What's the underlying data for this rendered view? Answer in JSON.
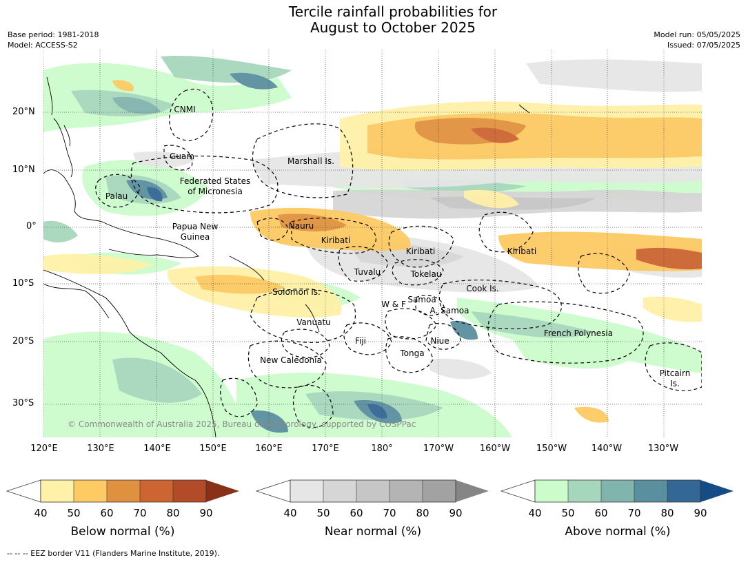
{
  "title_line1": "Tercile rainfall probabilities for",
  "title_line2": "August to October 2025",
  "left_info": {
    "base_period": "Base period: 1981-2018",
    "model": "Model: ACCESS-S2"
  },
  "right_info": {
    "model_run": "Model run: 05/05/2025",
    "issued": "Issued: 07/05/2025"
  },
  "lat_labels": [
    "20°N",
    "10°N",
    "0°",
    "10°S",
    "20°S",
    "30°S"
  ],
  "lon_labels": [
    "120°E",
    "130°E",
    "140°E",
    "150°E",
    "160°E",
    "170°E",
    "180°",
    "170°W",
    "160°W",
    "150°W",
    "140°W",
    "130°W"
  ],
  "regions": [
    {
      "name": "CNMI"
    },
    {
      "name": "Guam"
    },
    {
      "name": "Marshall Is."
    },
    {
      "name": "Federated States"
    },
    {
      "name": "of Micronesia"
    },
    {
      "name": "Palau"
    },
    {
      "name": "Nauru"
    },
    {
      "name": "Papua New"
    },
    {
      "name": "Guinea"
    },
    {
      "name": "Kiribati"
    },
    {
      "name": "Kiribati"
    },
    {
      "name": "Kiribati"
    },
    {
      "name": "Tuvalu"
    },
    {
      "name": "Tokelau"
    },
    {
      "name": "Solomon Is."
    },
    {
      "name": "Cook Is."
    },
    {
      "name": "Samoa"
    },
    {
      "name": "W & F"
    },
    {
      "name": "A. Samoa"
    },
    {
      "name": "Vanuatu"
    },
    {
      "name": "French Polynesia"
    },
    {
      "name": "Fiji"
    },
    {
      "name": "Niue"
    },
    {
      "name": "Tonga"
    },
    {
      "name": "New Caledonia"
    },
    {
      "name": "Pitcairn"
    },
    {
      "name": "Is."
    }
  ],
  "copyright": "© Commonwealth of Australia 2025, Bureau of Meteorology, supported by COSPPac",
  "colorbars": [
    {
      "title": "Below normal (%)",
      "ticks": [
        "40",
        "50",
        "60",
        "70",
        "80",
        "90"
      ],
      "colors": [
        "#fff1a8",
        "#fdca63",
        "#e0913f",
        "#cc6531",
        "#b24b27",
        "#8a3018"
      ]
    },
    {
      "title": "Near normal (%)",
      "ticks": [
        "40",
        "50",
        "60",
        "70",
        "80",
        "90"
      ],
      "colors": [
        "#e6e6e6",
        "#d6d6d6",
        "#c6c6c6",
        "#b4b4b4",
        "#a2a2a2",
        "#858585"
      ]
    },
    {
      "title": "Above normal (%)",
      "ticks": [
        "40",
        "50",
        "60",
        "70",
        "80",
        "90"
      ],
      "colors": [
        "#ccfccc",
        "#a6d7bc",
        "#82b4ae",
        "#5a8fa0",
        "#336796",
        "#154c86"
      ]
    }
  ],
  "footnote": "-- -- -- EEZ border V11 (Flanders Marine Institute, 2019)."
}
